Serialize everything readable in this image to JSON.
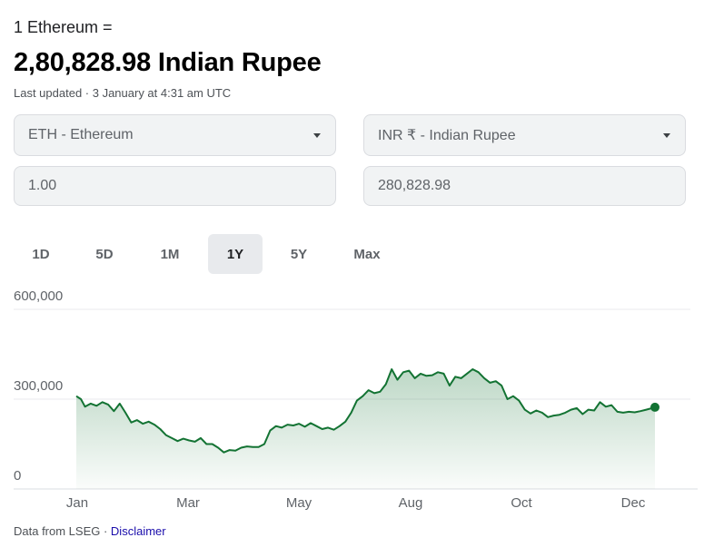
{
  "header": {
    "prefix": "1 Ethereum =",
    "result": "2,80,828.98 Indian Rupee",
    "updated": "Last updated · 3 January at 4:31 am UTC"
  },
  "converter": {
    "from_currency": "ETH - Ethereum",
    "to_currency": "INR ₹ - Indian Rupee",
    "from_amount": "1.00",
    "to_amount": "280,828.98"
  },
  "tabs": [
    {
      "label": "1D",
      "active": false
    },
    {
      "label": "5D",
      "active": false
    },
    {
      "label": "1M",
      "active": false
    },
    {
      "label": "1Y",
      "active": true
    },
    {
      "label": "5Y",
      "active": false
    },
    {
      "label": "Max",
      "active": false
    }
  ],
  "footer": {
    "source": "Data from LSEG · ",
    "disclaimer": "Disclaimer"
  },
  "colors": {
    "line": "#137333",
    "fill": "#137333",
    "grid": "#e8eaed"
  },
  "chart_data": {
    "type": "area",
    "x_tick_labels": [
      "Jan",
      "Mar",
      "May",
      "Aug",
      "Oct",
      "Dec"
    ],
    "y_tick_labels": [
      "600,000",
      "300,000",
      "0"
    ],
    "y_ticks": [
      600000,
      300000,
      0
    ],
    "ylim": [
      0,
      600000
    ],
    "xlim": [
      0,
      1
    ],
    "grid": true,
    "series": [
      {
        "x": [
          0.0,
          0.008,
          0.015,
          0.025,
          0.035,
          0.045,
          0.055,
          0.065,
          0.075,
          0.085,
          0.095,
          0.105,
          0.115,
          0.125,
          0.135,
          0.145,
          0.155,
          0.165,
          0.175,
          0.185,
          0.195,
          0.205,
          0.215,
          0.225,
          0.235,
          0.245,
          0.255,
          0.265,
          0.275,
          0.285,
          0.295,
          0.305,
          0.315,
          0.325,
          0.335,
          0.345,
          0.355,
          0.365,
          0.375,
          0.385,
          0.395,
          0.405,
          0.415,
          0.425,
          0.435,
          0.445,
          0.455,
          0.465,
          0.475,
          0.485,
          0.495,
          0.505,
          0.515,
          0.525,
          0.535,
          0.545,
          0.555,
          0.565,
          0.575,
          0.585,
          0.595,
          0.605,
          0.615,
          0.625,
          0.635,
          0.645,
          0.655,
          0.665,
          0.675,
          0.685,
          0.695,
          0.705,
          0.715,
          0.725,
          0.735,
          0.745,
          0.755,
          0.765,
          0.775,
          0.785,
          0.795,
          0.805,
          0.815,
          0.825,
          0.835,
          0.845,
          0.855,
          0.865,
          0.875,
          0.885,
          0.895,
          0.905,
          0.915,
          0.925,
          0.935,
          0.945,
          0.955,
          0.965,
          0.975,
          0.985,
          0.995,
          1.0
        ],
        "values": [
          310000,
          300000,
          275000,
          285000,
          278000,
          290000,
          282000,
          260000,
          285000,
          255000,
          222000,
          230000,
          218000,
          225000,
          215000,
          200000,
          180000,
          170000,
          160000,
          168000,
          162000,
          158000,
          170000,
          150000,
          150000,
          138000,
          122000,
          130000,
          128000,
          138000,
          142000,
          140000,
          140000,
          150000,
          195000,
          210000,
          205000,
          215000,
          212000,
          218000,
          208000,
          220000,
          210000,
          200000,
          205000,
          198000,
          210000,
          225000,
          255000,
          295000,
          310000,
          330000,
          320000,
          325000,
          350000,
          400000,
          365000,
          390000,
          395000,
          370000,
          385000,
          378000,
          380000,
          390000,
          385000,
          345000,
          375000,
          370000,
          385000,
          400000,
          390000,
          370000,
          355000,
          360000,
          345000,
          300000,
          310000,
          295000,
          265000,
          252000,
          262000,
          255000,
          240000,
          245000,
          248000,
          255000,
          265000,
          270000,
          250000,
          265000,
          262000,
          290000,
          275000,
          280000,
          258000,
          255000,
          258000,
          256000,
          260000,
          265000,
          270000,
          273000
        ]
      }
    ]
  }
}
